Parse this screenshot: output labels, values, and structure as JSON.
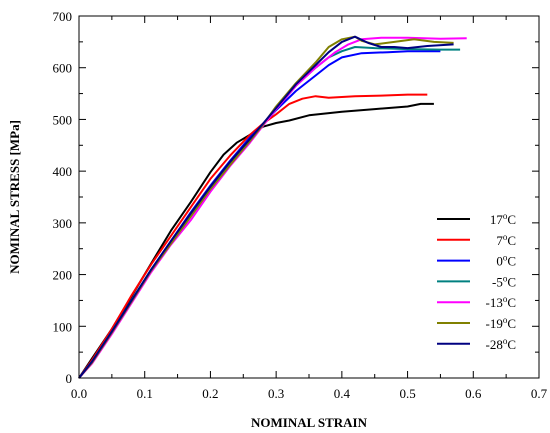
{
  "chart_data": {
    "type": "line",
    "title": "",
    "xlabel": "NOMINAL STRAIN",
    "ylabel": "NOMINAL STRESS [MPa]",
    "xlim": [
      0.0,
      0.7
    ],
    "ylim": [
      0,
      700
    ],
    "xticks": [
      0.0,
      0.1,
      0.2,
      0.3,
      0.4,
      0.5,
      0.6,
      0.7
    ],
    "xtick_labels": [
      "0.0",
      "0.1",
      "0.2",
      "0.3",
      "0.4",
      "0.5",
      "0.6",
      "0.7"
    ],
    "yticks": [
      0,
      100,
      200,
      300,
      400,
      500,
      600,
      700
    ],
    "ytick_labels": [
      "0",
      "100",
      "200",
      "300",
      "400",
      "500",
      "600",
      "700"
    ],
    "grid": false,
    "legend_position": "lower-right",
    "series": [
      {
        "name": "17°C",
        "base": "17",
        "unit": "C",
        "color": "#000000",
        "x": [
          0.0,
          0.02,
          0.05,
          0.08,
          0.11,
          0.14,
          0.17,
          0.2,
          0.22,
          0.24,
          0.26,
          0.28,
          0.3,
          0.32,
          0.35,
          0.4,
          0.45,
          0.5,
          0.52,
          0.54
        ],
        "y": [
          0,
          38,
          95,
          158,
          222,
          285,
          340,
          398,
          432,
          455,
          470,
          486,
          493,
          498,
          508,
          515,
          520,
          525,
          530,
          530
        ]
      },
      {
        "name": "7°C",
        "base": "7",
        "unit": "C",
        "color": "#ff0000",
        "x": [
          0.0,
          0.02,
          0.05,
          0.08,
          0.11,
          0.14,
          0.17,
          0.2,
          0.23,
          0.26,
          0.28,
          0.3,
          0.32,
          0.34,
          0.36,
          0.38,
          0.42,
          0.46,
          0.5,
          0.53
        ],
        "y": [
          0,
          35,
          95,
          160,
          220,
          275,
          330,
          385,
          430,
          470,
          492,
          510,
          530,
          540,
          545,
          542,
          545,
          546,
          548,
          548
        ]
      },
      {
        "name": "0°C",
        "base": "0",
        "unit": "C",
        "color": "#0000ff",
        "x": [
          0.0,
          0.02,
          0.05,
          0.08,
          0.11,
          0.14,
          0.17,
          0.2,
          0.23,
          0.26,
          0.28,
          0.3,
          0.33,
          0.36,
          0.38,
          0.4,
          0.43,
          0.47,
          0.5,
          0.55
        ],
        "y": [
          0,
          32,
          90,
          150,
          210,
          265,
          320,
          372,
          420,
          465,
          490,
          518,
          555,
          585,
          605,
          620,
          628,
          630,
          632,
          632
        ]
      },
      {
        "name": "-5°C",
        "base": "-5",
        "unit": "C",
        "color": "#008080",
        "x": [
          0.0,
          0.02,
          0.05,
          0.08,
          0.11,
          0.14,
          0.17,
          0.2,
          0.23,
          0.26,
          0.28,
          0.3,
          0.33,
          0.36,
          0.38,
          0.4,
          0.42,
          0.45,
          0.5,
          0.55,
          0.58
        ],
        "y": [
          0,
          32,
          90,
          150,
          210,
          262,
          318,
          370,
          415,
          460,
          490,
          520,
          565,
          600,
          620,
          632,
          640,
          638,
          636,
          635,
          635
        ]
      },
      {
        "name": "-13°C",
        "base": "-13",
        "unit": "C",
        "color": "#ff00ff",
        "x": [
          0.0,
          0.02,
          0.05,
          0.08,
          0.11,
          0.14,
          0.17,
          0.2,
          0.23,
          0.26,
          0.28,
          0.3,
          0.33,
          0.36,
          0.39,
          0.41,
          0.43,
          0.46,
          0.5,
          0.55,
          0.59
        ],
        "y": [
          0,
          28,
          85,
          145,
          205,
          258,
          305,
          360,
          410,
          455,
          488,
          520,
          565,
          600,
          630,
          645,
          655,
          658,
          658,
          656,
          657
        ]
      },
      {
        "name": "-19°C",
        "base": "-19",
        "unit": "C",
        "color": "#808000",
        "x": [
          0.0,
          0.02,
          0.05,
          0.08,
          0.11,
          0.14,
          0.17,
          0.2,
          0.23,
          0.26,
          0.28,
          0.3,
          0.33,
          0.36,
          0.38,
          0.4,
          0.42,
          0.43,
          0.45,
          0.48,
          0.51,
          0.54,
          0.57
        ],
        "y": [
          0,
          30,
          88,
          148,
          208,
          260,
          312,
          365,
          412,
          458,
          490,
          525,
          570,
          610,
          640,
          655,
          660,
          652,
          645,
          650,
          655,
          650,
          648
        ]
      },
      {
        "name": "-28°C",
        "base": "-28",
        "unit": "C",
        "color": "#000080",
        "x": [
          0.0,
          0.02,
          0.05,
          0.08,
          0.11,
          0.14,
          0.17,
          0.2,
          0.23,
          0.26,
          0.28,
          0.3,
          0.33,
          0.36,
          0.38,
          0.4,
          0.42,
          0.44,
          0.46,
          0.48,
          0.5,
          0.53,
          0.57
        ],
        "y": [
          0,
          32,
          90,
          150,
          210,
          265,
          318,
          370,
          418,
          462,
          492,
          522,
          568,
          605,
          630,
          650,
          660,
          648,
          640,
          640,
          638,
          642,
          645
        ]
      }
    ]
  }
}
